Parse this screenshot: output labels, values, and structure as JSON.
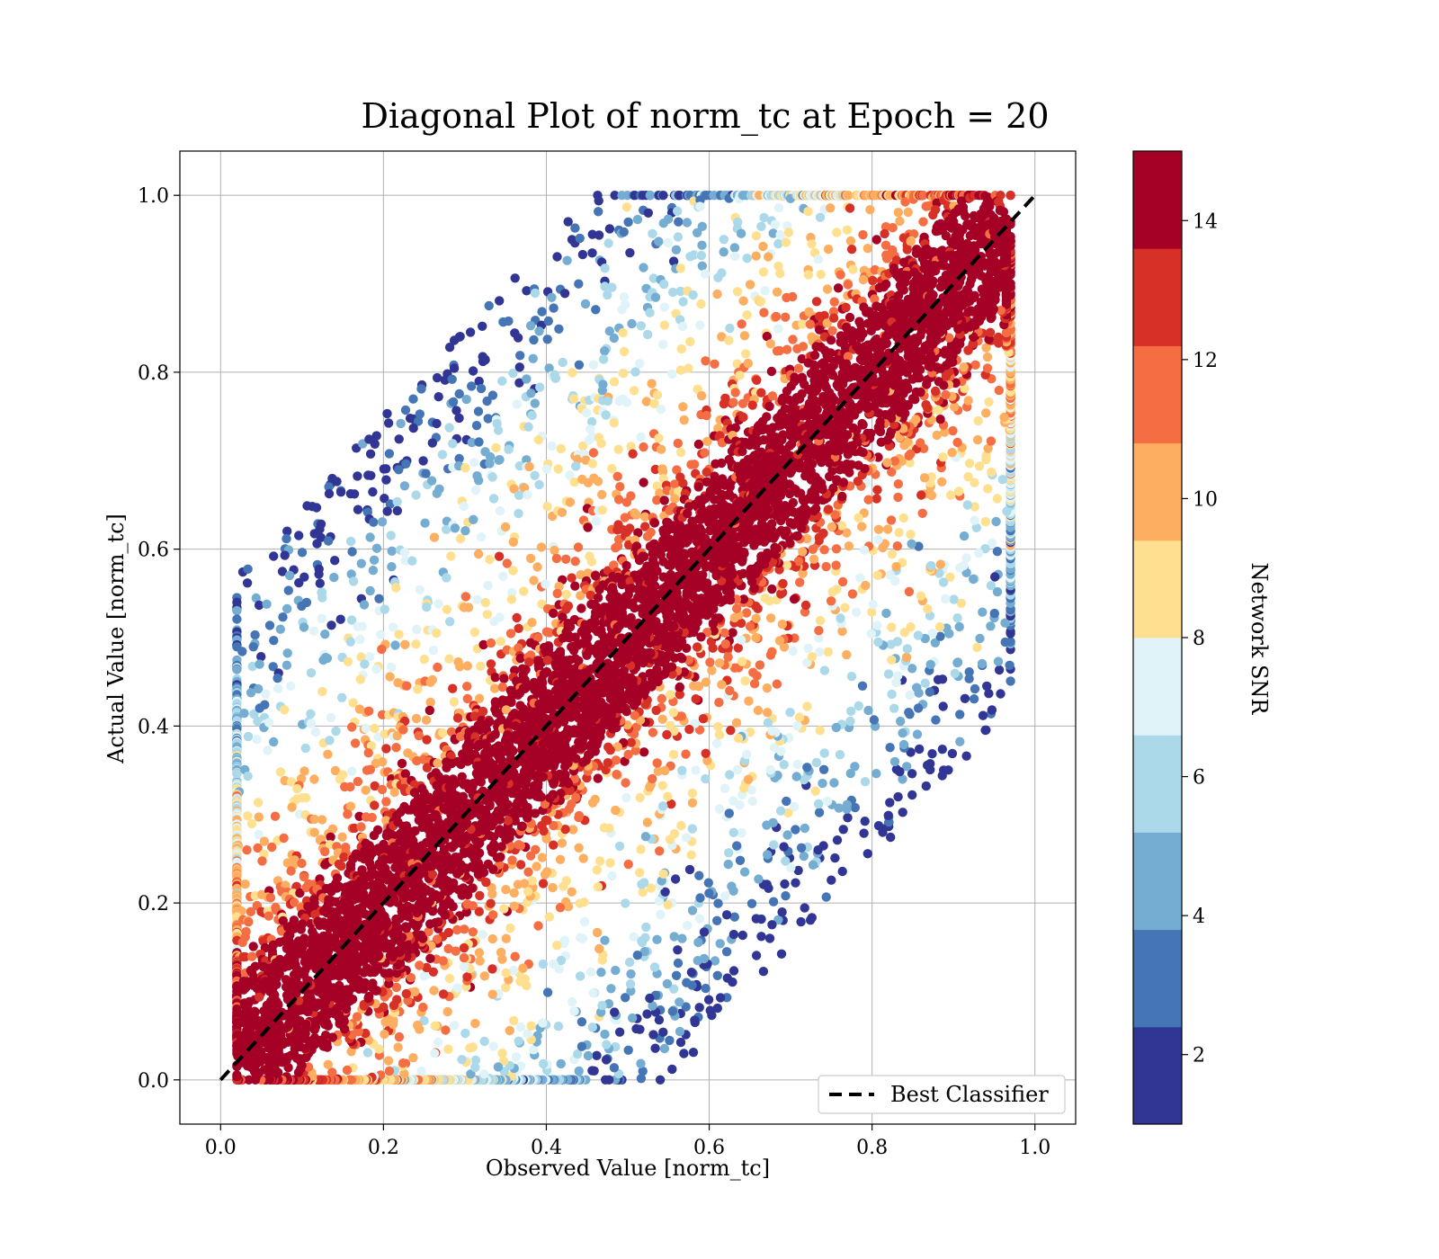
{
  "chart_data": {
    "type": "scatter",
    "title": "Diagonal Plot of norm_tc at Epoch = 20",
    "xlabel": "Observed Value [norm_tc]",
    "ylabel": "Actual Value [norm_tc]",
    "xlim": [
      -0.05,
      1.05
    ],
    "ylim": [
      -0.05,
      1.05
    ],
    "xticks": [
      "0.0",
      "0.2",
      "0.4",
      "0.6",
      "0.8",
      "1.0"
    ],
    "yticks": [
      "0.0",
      "0.2",
      "0.4",
      "0.6",
      "0.8",
      "1.0"
    ],
    "grid": true,
    "reference_line": {
      "name": "Best Classifier",
      "x": [
        0.0,
        1.0
      ],
      "y": [
        0.0,
        1.0
      ],
      "style": "dashed",
      "color": "#000000"
    },
    "legend_position": "lower-right",
    "colorbar": {
      "label": "Network SNR",
      "range": [
        1,
        15
      ],
      "ticks": [
        "2",
        "4",
        "6",
        "8",
        "10",
        "12",
        "14"
      ],
      "colors": [
        "#313695",
        "#4575b4",
        "#74add1",
        "#abd9e9",
        "#e0f3f8",
        "#fee090",
        "#fdae61",
        "#f46d43",
        "#d73027",
        "#a50026"
      ]
    },
    "clusters": [
      {
        "snr_band": "high (14+)",
        "color": "#a50026",
        "description_region": "diagonal band",
        "half_width": 0.07
      },
      {
        "snr_band": "medium",
        "color": "#fdae61"
      },
      {
        "snr_band": "low",
        "color": "#313695"
      }
    ]
  }
}
